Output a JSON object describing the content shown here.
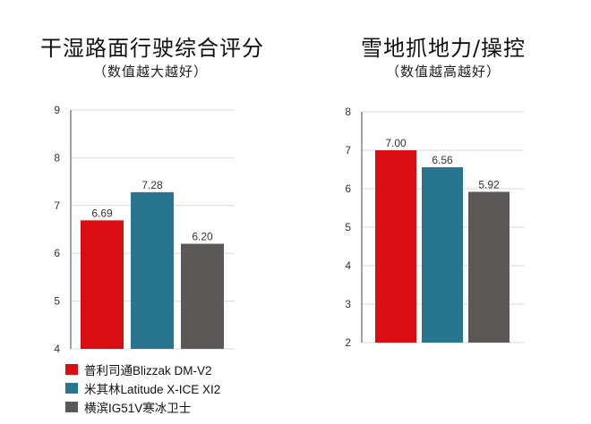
{
  "charts": [
    {
      "title": "干湿路面行驶综合评分",
      "subtitle": "（数值越大越好）"
    },
    {
      "title": "雪地抓地力/操控",
      "subtitle": "（数值越高越好）"
    }
  ],
  "legend": {
    "items": [
      {
        "label": "普利司通Blizzak DM-V2",
        "color": "#d90d12"
      },
      {
        "label": "米其林Latitude X-ICE XI2",
        "color": "#27758f"
      },
      {
        "label": "横滨IG51V寒冰卫士",
        "color": "#5d5858"
      }
    ]
  },
  "chart_data": [
    {
      "type": "bar",
      "title": "干湿路面行驶综合评分",
      "subtitle": "（数值越大越好）",
      "series_names": [
        "普利司通Blizzak DM-V2",
        "米其林Latitude X-ICE XI2",
        "横滨IG51V寒冰卫士"
      ],
      "values": [
        6.69,
        7.28,
        6.2
      ],
      "value_labels": [
        "6.69",
        "7.28",
        "6.20"
      ],
      "colors": [
        "#d90d12",
        "#27758f",
        "#5d5858"
      ],
      "ylim": [
        4,
        9
      ],
      "yticks": [
        4,
        5,
        6,
        7,
        8,
        9
      ],
      "grid": true
    },
    {
      "type": "bar",
      "title": "雪地抓地力/操控",
      "subtitle": "（数值越高越好）",
      "series_names": [
        "普利司通Blizzak DM-V2",
        "米其林Latitude X-ICE XI2",
        "横滨IG51V寒冰卫士"
      ],
      "values": [
        7.0,
        6.56,
        5.92
      ],
      "value_labels": [
        "7.00",
        "6.56",
        "5.92"
      ],
      "colors": [
        "#d90d12",
        "#27758f",
        "#5d5858"
      ],
      "ylim": [
        2,
        8
      ],
      "yticks": [
        2,
        3,
        4,
        5,
        6,
        7,
        8
      ],
      "grid": true
    }
  ]
}
